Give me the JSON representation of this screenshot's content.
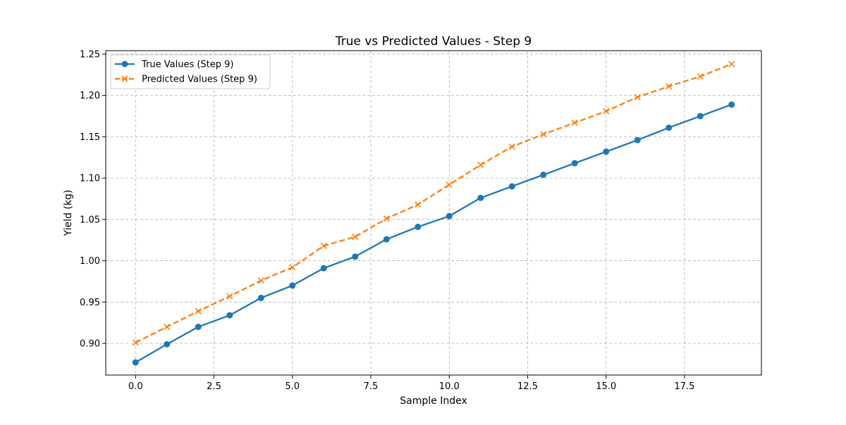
{
  "chart_data": {
    "type": "line",
    "title": "True vs Predicted Values - Step 9",
    "xlabel": "Sample Index",
    "ylabel": "Yield (kg)",
    "xlim": [
      -0.95,
      19.95
    ],
    "ylim": [
      0.8617,
      1.2542
    ],
    "xticks": [
      0.0,
      2.5,
      5.0,
      7.5,
      10.0,
      12.5,
      15.0,
      17.5
    ],
    "xtick_labels": [
      "0.0",
      "2.5",
      "5.0",
      "7.5",
      "10.0",
      "12.5",
      "15.0",
      "17.5"
    ],
    "yticks": [
      0.9,
      0.95,
      1.0,
      1.05,
      1.1,
      1.15,
      1.2,
      1.25
    ],
    "ytick_labels": [
      "0.90",
      "0.95",
      "1.00",
      "1.05",
      "1.10",
      "1.15",
      "1.20",
      "1.25"
    ],
    "grid": true,
    "legend_position": "top-left",
    "x": [
      0,
      1,
      2,
      3,
      4,
      5,
      6,
      7,
      8,
      9,
      10,
      11,
      12,
      13,
      14,
      15,
      16,
      17,
      18,
      19
    ],
    "series": [
      {
        "name": "True Values (Step 9)",
        "color": "#1f77b4",
        "marker": "circle",
        "linestyle": "solid",
        "values": [
          0.877,
          0.899,
          0.92,
          0.934,
          0.955,
          0.97,
          0.991,
          1.005,
          1.026,
          1.041,
          1.054,
          1.076,
          1.09,
          1.104,
          1.118,
          1.132,
          1.146,
          1.161,
          1.175,
          1.189
        ]
      },
      {
        "name": "Predicted Values (Step 9)",
        "color": "#ff7f0e",
        "marker": "x",
        "linestyle": "dashed",
        "values": [
          0.901,
          0.92,
          0.939,
          0.957,
          0.976,
          0.992,
          1.018,
          1.029,
          1.051,
          1.068,
          1.092,
          1.116,
          1.138,
          1.153,
          1.167,
          1.181,
          1.198,
          1.211,
          1.223,
          1.238
        ]
      }
    ]
  }
}
